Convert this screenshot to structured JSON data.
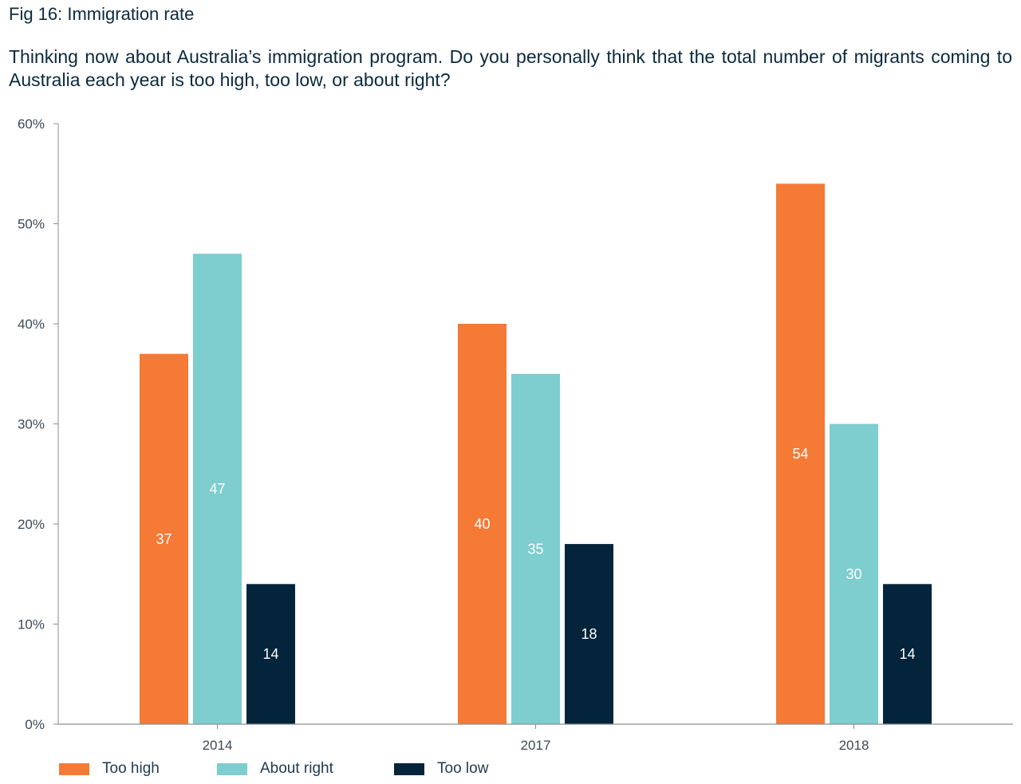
{
  "figure": {
    "title": "Fig 16: Immigration rate",
    "question": "Thinking now about Australia’s immigration program. Do you personally think that the total number of migrants coming to Australia each year is too high, too low, or about right?"
  },
  "chart_data": {
    "type": "bar",
    "title": "Immigration rate",
    "categories": [
      "2014",
      "2017",
      "2018"
    ],
    "series": [
      {
        "name": "Too high",
        "color": "#f47a36",
        "values": [
          37,
          40,
          54
        ]
      },
      {
        "name": "About right",
        "color": "#7ecdcf",
        "values": [
          47,
          35,
          30
        ]
      },
      {
        "name": "Too low",
        "color": "#03243a",
        "values": [
          14,
          18,
          14
        ]
      }
    ],
    "ylim": [
      0,
      60
    ],
    "yticks": [
      "0%",
      "10%",
      "20%",
      "30%",
      "40%",
      "50%",
      "60%"
    ],
    "xlabel": "",
    "ylabel": "",
    "legend": "bottom-left"
  }
}
